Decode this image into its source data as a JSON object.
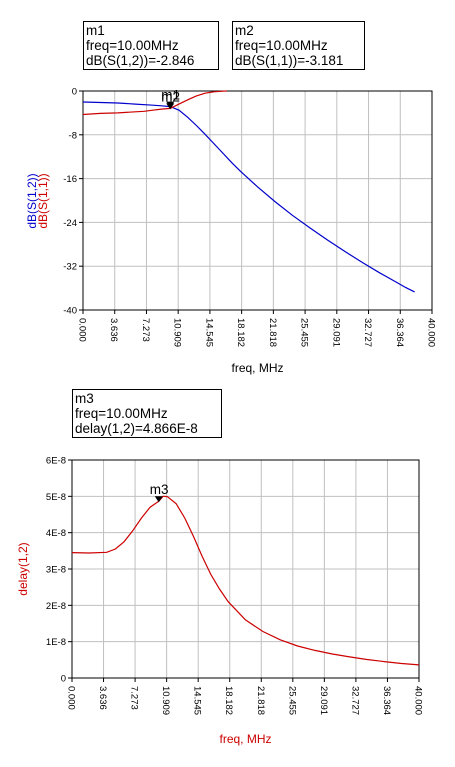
{
  "markers": {
    "m1": {
      "name": "m1",
      "line1": "freq=10.00MHz",
      "line2": "dB(S(1,2))=-2.846"
    },
    "m2": {
      "name": "m2",
      "line1": "freq=10.00MHz",
      "line2": "dB(S(1,1))=-3.181"
    },
    "m3": {
      "name": "m3",
      "line1": "freq=10.00MHz",
      "line2": "delay(1,2)=4.866E-8"
    }
  },
  "colors": {
    "s12": "#0000cc",
    "s11": "#cc0000",
    "delay": "#cc0000",
    "grid": "#c0c0c0",
    "axis": "#000000"
  },
  "chart_data": [
    {
      "type": "line",
      "xlabel": "freq, MHz",
      "ylabel_series": [
        "dB(S(1,2))",
        "dB(S(1,1))"
      ],
      "xlim": [
        0,
        40
      ],
      "ylim": [
        -40,
        0
      ],
      "x_ticks": [
        "0.000",
        "3.636",
        "7.273",
        "10.909",
        "14.545",
        "18.182",
        "21.818",
        "25.455",
        "29.091",
        "32.727",
        "36.364",
        "40.000"
      ],
      "y_ticks": [
        "0",
        "-8",
        "-16",
        "-24",
        "-32",
        "-40"
      ],
      "grid": true,
      "series": [
        {
          "name": "dB(S(1,2))",
          "color": "#0000cc",
          "x": [
            0,
            2,
            4,
            6,
            8,
            9,
            10,
            11,
            12,
            13,
            14,
            15,
            16,
            17,
            18,
            20,
            22,
            24,
            26,
            28,
            30,
            32,
            34,
            36,
            37,
            38
          ],
          "y": [
            -2.0,
            -2.1,
            -2.2,
            -2.4,
            -2.6,
            -2.7,
            -2.846,
            -3.5,
            -4.8,
            -6.3,
            -7.9,
            -9.6,
            -11.3,
            -13.0,
            -14.6,
            -17.5,
            -20.2,
            -22.7,
            -25.0,
            -27.2,
            -29.3,
            -31.3,
            -33.2,
            -35.0,
            -35.9,
            -36.7
          ]
        },
        {
          "name": "dB(S(1,1))",
          "color": "#cc0000",
          "x": [
            0,
            2,
            4,
            6,
            7,
            8,
            9,
            10,
            11,
            12,
            13,
            14,
            15,
            16,
            16.5
          ],
          "y": [
            -4.3,
            -4.1,
            -4.0,
            -3.8,
            -3.7,
            -3.5,
            -3.3,
            -3.181,
            -2.4,
            -1.6,
            -0.9,
            -0.4,
            -0.15,
            -0.04,
            0
          ]
        }
      ],
      "markers": [
        {
          "label": "m2",
          "x": 10,
          "y": -3.181
        },
        {
          "label": "m1",
          "x": 10,
          "y": -2.846
        }
      ]
    },
    {
      "type": "line",
      "xlabel": "freq, MHz",
      "ylabel": "delay(1,2)",
      "xlim": [
        0,
        40
      ],
      "ylim": [
        0,
        6e-08
      ],
      "x_ticks": [
        "0.000",
        "3.636",
        "7.273",
        "10.909",
        "14.545",
        "18.182",
        "21.818",
        "25.455",
        "29.091",
        "32.727",
        "36.364",
        "40.000"
      ],
      "y_ticks": [
        "6E-8",
        "5E-8",
        "4E-8",
        "3E-8",
        "2E-8",
        "1E-8",
        "0"
      ],
      "grid": true,
      "series": [
        {
          "name": "delay(1,2)",
          "color": "#cc0000",
          "x": [
            0,
            2,
            4,
            5,
            6,
            7,
            8,
            9,
            10,
            10.5,
            11,
            12,
            13,
            14,
            15,
            16,
            17,
            18,
            20,
            22,
            24,
            26,
            28,
            30,
            32,
            34,
            36,
            38,
            40
          ],
          "y": [
            3.45e-08,
            3.44e-08,
            3.46e-08,
            3.55e-08,
            3.75e-08,
            4.05e-08,
            4.4e-08,
            4.7e-08,
            4.866e-08,
            5e-08,
            4.99e-08,
            4.8e-08,
            4.4e-08,
            3.9e-08,
            3.35e-08,
            2.85e-08,
            2.45e-08,
            2.1e-08,
            1.6e-08,
            1.28e-08,
            1.05e-08,
            8.8e-09,
            7.6e-09,
            6.6e-09,
            5.8e-09,
            5.1e-09,
            4.5e-09,
            4e-09,
            3.6e-09
          ]
        }
      ],
      "markers": [
        {
          "label": "m3",
          "x": 10,
          "y": 4.866e-08
        }
      ]
    }
  ]
}
